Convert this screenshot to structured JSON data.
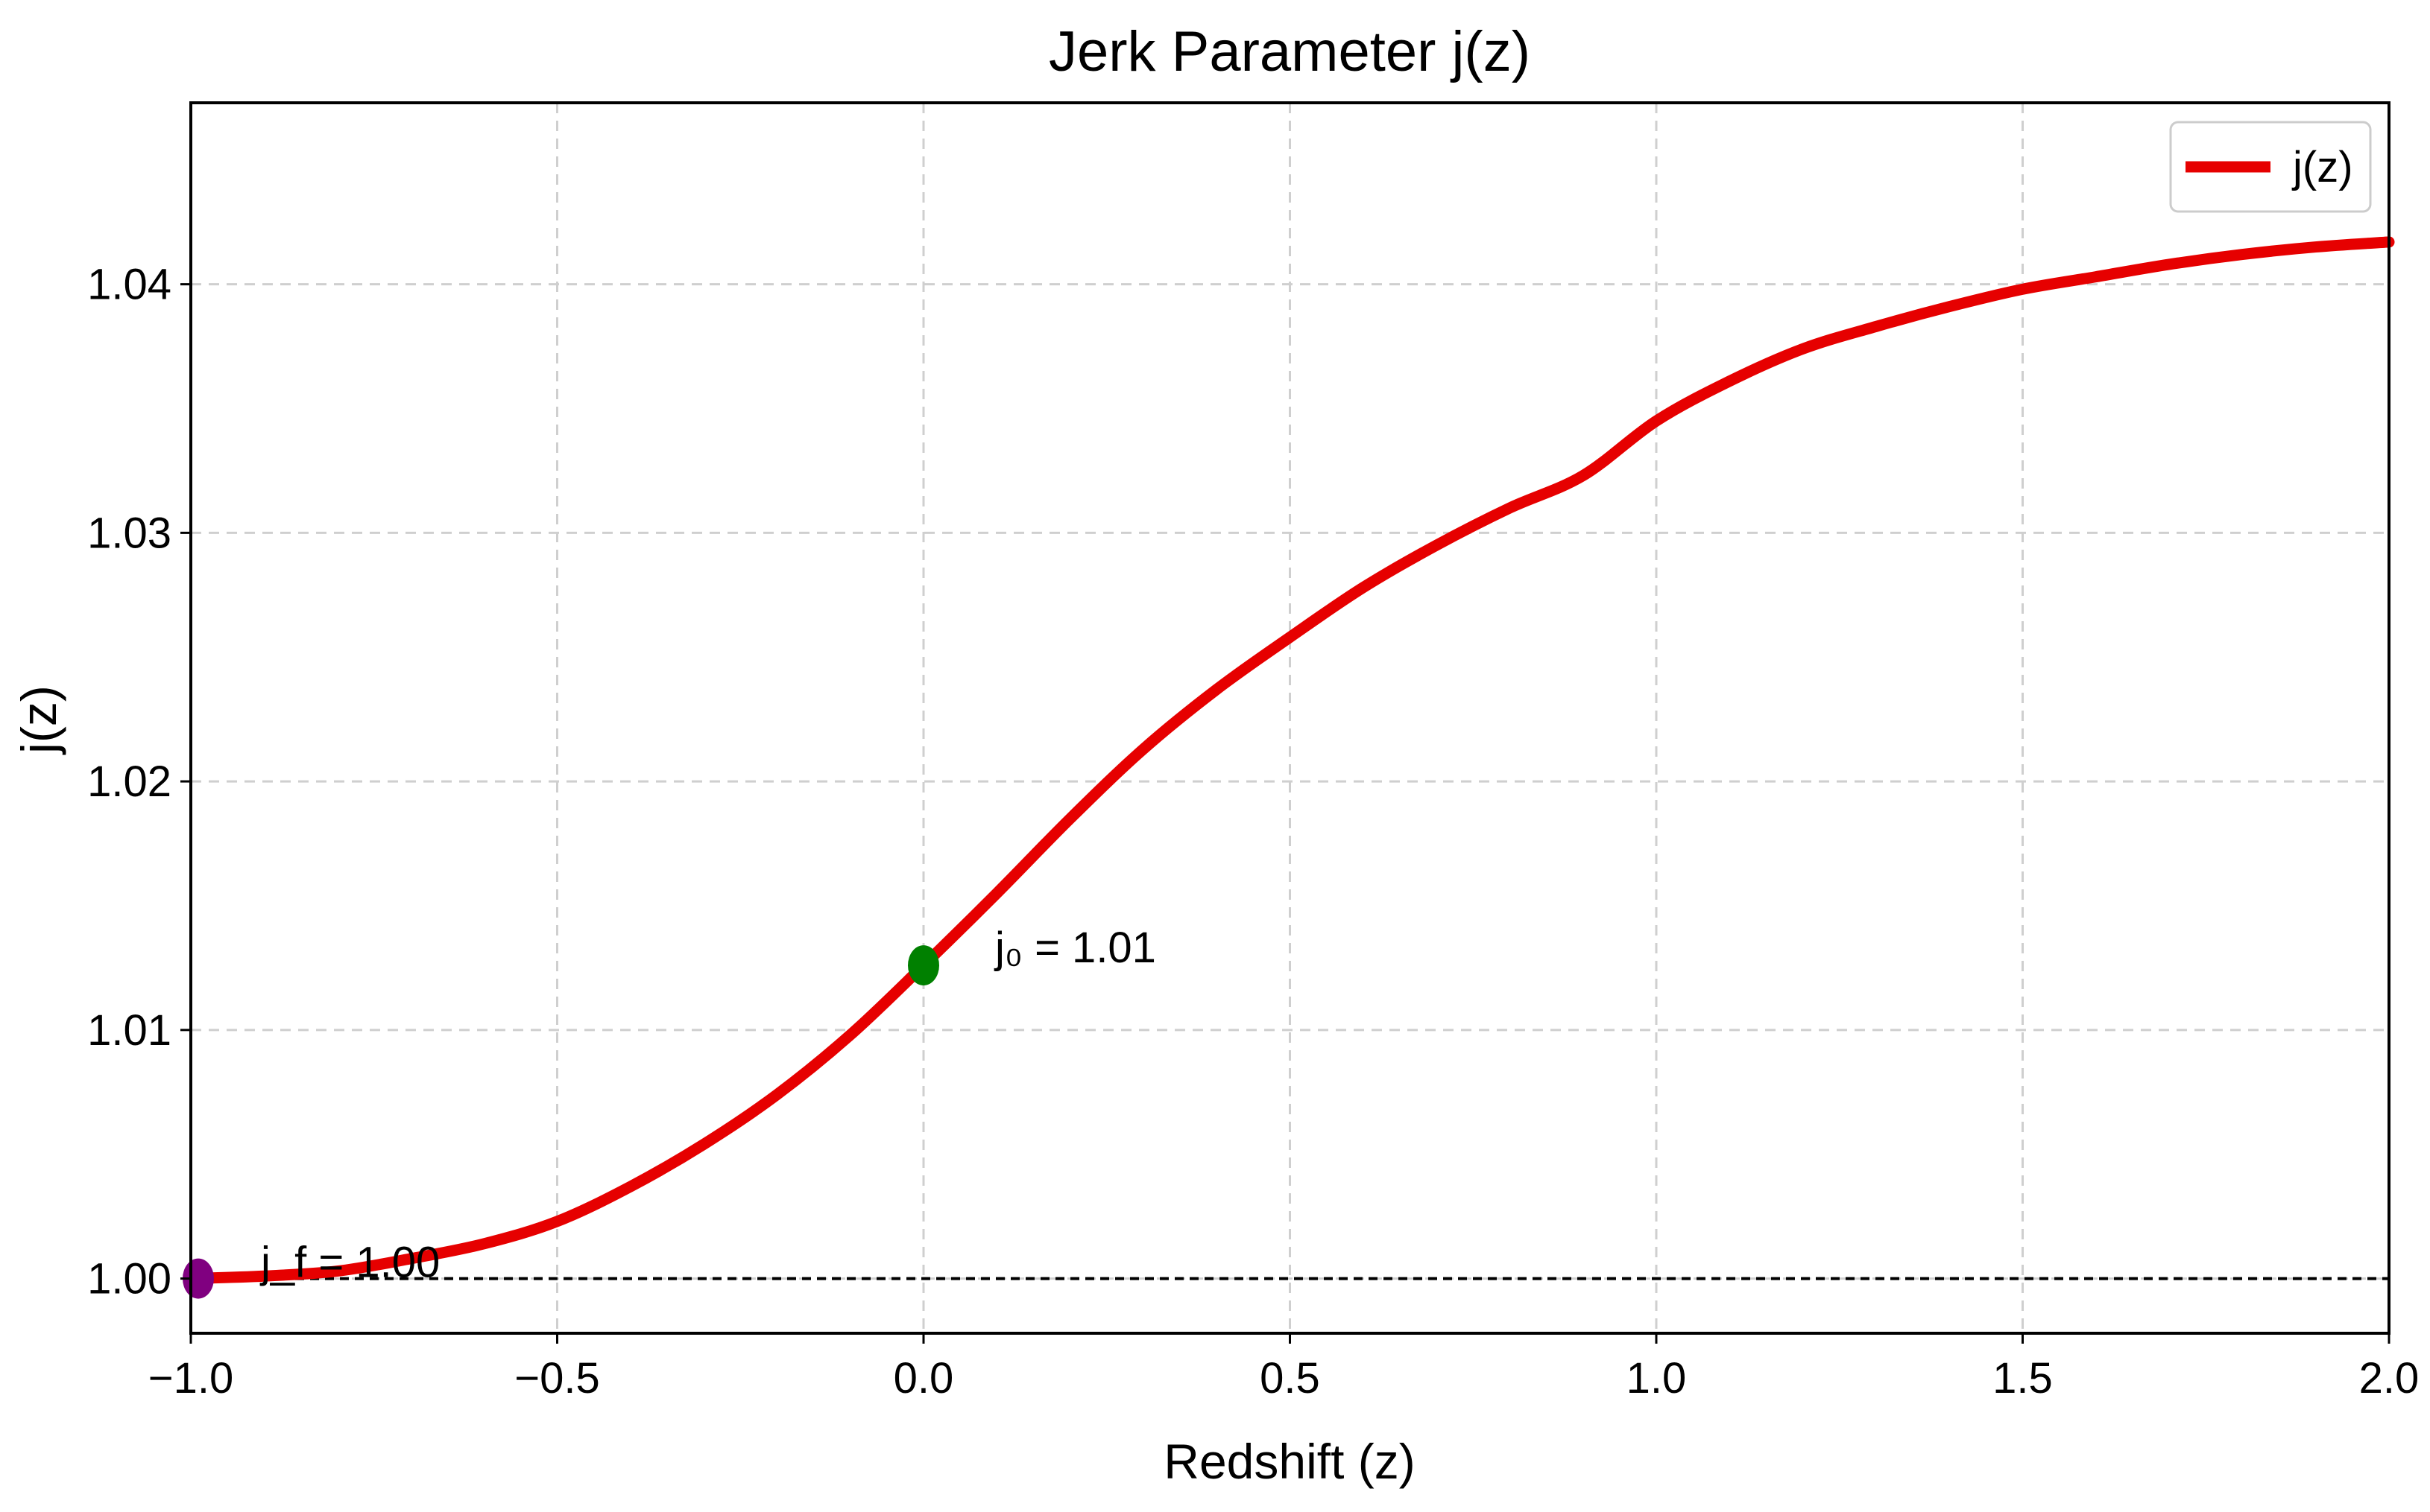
{
  "chart_data": {
    "type": "line",
    "title": "Jerk Parameter j(z)",
    "xlabel": "Redshift (z)",
    "ylabel": "j(z)",
    "xlim": [
      -1.0,
      2.0
    ],
    "ylim": [
      0.9978,
      1.0473
    ],
    "x_ticks": [
      -1.0,
      -0.5,
      0.0,
      0.5,
      1.0,
      1.5,
      2.0
    ],
    "x_tick_labels": [
      "−1.0",
      "−0.5",
      "0.0",
      "0.5",
      "1.0",
      "1.5",
      "2.0"
    ],
    "y_ticks": [
      1.0,
      1.01,
      1.02,
      1.03,
      1.04
    ],
    "y_tick_labels": [
      "1.00",
      "1.01",
      "1.02",
      "1.03",
      "1.04"
    ],
    "grid": true,
    "legend_position": "upper right",
    "series": [
      {
        "name": "j(z)",
        "color": "#e60000",
        "x": [
          -1.0,
          -0.9,
          -0.8,
          -0.7,
          -0.6,
          -0.5,
          -0.4,
          -0.3,
          -0.2,
          -0.1,
          0.0,
          0.1,
          0.2,
          0.3,
          0.4,
          0.5,
          0.6,
          0.7,
          0.8,
          0.9,
          1.0,
          1.1,
          1.2,
          1.3,
          1.4,
          1.5,
          1.6,
          1.7,
          1.8,
          1.9,
          2.0
        ],
        "y": [
          1.0,
          1.0001,
          1.0003,
          1.0008,
          1.0014,
          1.0023,
          1.0037,
          1.0054,
          1.0074,
          1.0098,
          1.0126,
          1.0155,
          1.0185,
          1.0213,
          1.0237,
          1.0258,
          1.0278,
          1.0295,
          1.031,
          1.0323,
          1.0345,
          1.0361,
          1.0374,
          1.0383,
          1.0391,
          1.0398,
          1.0403,
          1.0408,
          1.0412,
          1.0415,
          1.0417
        ]
      }
    ],
    "reference_line": {
      "y": 1.0,
      "style": "dashed",
      "color": "#000000"
    },
    "markers": [
      {
        "name": "j0",
        "x": 0.0,
        "y": 1.0126,
        "color": "#008000",
        "label": "j₀ = 1.01"
      },
      {
        "name": "jf",
        "x": -1.0,
        "y": 1.0,
        "color": "#800080",
        "label": "j_f = 1.00"
      }
    ]
  }
}
